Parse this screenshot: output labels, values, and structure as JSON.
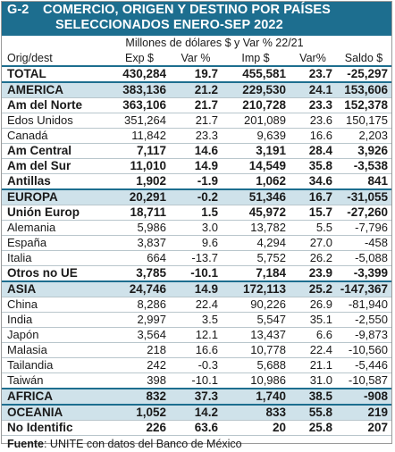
{
  "title": {
    "code": "G-2",
    "line1": "COMERCIO, ORIGEN Y DESTINO POR PAÍSES",
    "line2": "SELECCIONADOS ENERO-SEP 2022"
  },
  "subtitle": "Millones de dólares $ y Var % 22/21",
  "columns": [
    "Orig/dest",
    "Exp $",
    "Var %",
    "Imp $",
    "Var%",
    "Saldo $"
  ],
  "rows": [
    {
      "name": "TOTAL",
      "exp": "430,284",
      "var_exp": "19.7",
      "imp": "455,581",
      "var_imp": "23.7",
      "saldo": "-25,297",
      "bold": true
    },
    {
      "name": "AMERICA",
      "exp": "383,136",
      "var_exp": "21.2",
      "imp": "229,530",
      "var_imp": "24.1",
      "saldo": "153,606",
      "bold": true,
      "section": true
    },
    {
      "name": "Am del Norte",
      "exp": "363,106",
      "var_exp": "21.7",
      "imp": "210,728",
      "var_imp": "23.3",
      "saldo": "152,378",
      "bold": true
    },
    {
      "name": "Edos Unidos",
      "exp": "351,264",
      "var_exp": "21.7",
      "imp": "201,089",
      "var_imp": "23.6",
      "saldo": "150,175",
      "bold": false
    },
    {
      "name": "Canadá",
      "exp": "11,842",
      "var_exp": "23.3",
      "imp": "9,639",
      "var_imp": "16.6",
      "saldo": "2,203",
      "bold": false
    },
    {
      "name": "Am Central",
      "exp": "7,117",
      "var_exp": "14.6",
      "imp": "3,191",
      "var_imp": "28.4",
      "saldo": "3,926",
      "bold": true
    },
    {
      "name": "Am del Sur",
      "exp": "11,010",
      "var_exp": "14.9",
      "imp": "14,549",
      "var_imp": "35.8",
      "saldo": "-3,538",
      "bold": true
    },
    {
      "name": "Antillas",
      "exp": "1,902",
      "var_exp": "-1.9",
      "imp": "1,062",
      "var_imp": "34.6",
      "saldo": "841",
      "bold": true
    },
    {
      "name": "EUROPA",
      "exp": "20,291",
      "var_exp": "-0.2",
      "imp": "51,346",
      "var_imp": "16.7",
      "saldo": "-31,055",
      "bold": true,
      "section": true
    },
    {
      "name": "Unión Europ",
      "exp": "18,711",
      "var_exp": "1.5",
      "imp": "45,972",
      "var_imp": "15.7",
      "saldo": "-27,260",
      "bold": true
    },
    {
      "name": "Alemania",
      "exp": "5,986",
      "var_exp": "3.0",
      "imp": "13,782",
      "var_imp": "5.5",
      "saldo": "-7,796",
      "bold": false
    },
    {
      "name": "España",
      "exp": "3,837",
      "var_exp": "9.6",
      "imp": "4,294",
      "var_imp": "27.0",
      "saldo": "-458",
      "bold": false
    },
    {
      "name": "Italia",
      "exp": "664",
      "var_exp": "-13.7",
      "imp": "5,752",
      "var_imp": "26.2",
      "saldo": "-5,088",
      "bold": false
    },
    {
      "name": "Otros no UE",
      "exp": "3,785",
      "var_exp": "-10.1",
      "imp": "7,184",
      "var_imp": "23.9",
      "saldo": "-3,399",
      "bold": true
    },
    {
      "name": "ASIA",
      "exp": "24,746",
      "var_exp": "14.9",
      "imp": "172,113",
      "var_imp": "25.2",
      "saldo": "-147,367",
      "bold": true,
      "section": true
    },
    {
      "name": "China",
      "exp": "8,286",
      "var_exp": "22.4",
      "imp": "90,226",
      "var_imp": "26.9",
      "saldo": "-81,940",
      "bold": false
    },
    {
      "name": "India",
      "exp": "2,997",
      "var_exp": "3.5",
      "imp": "5,547",
      "var_imp": "35.1",
      "saldo": "-2,550",
      "bold": false
    },
    {
      "name": "Japón",
      "exp": "3,564",
      "var_exp": "12.1",
      "imp": "13,437",
      "var_imp": "6.6",
      "saldo": "-9,873",
      "bold": false
    },
    {
      "name": "Malasia",
      "exp": "218",
      "var_exp": "16.6",
      "imp": "10,778",
      "var_imp": "22.4",
      "saldo": "-10,560",
      "bold": false
    },
    {
      "name": "Tailandia",
      "exp": "242",
      "var_exp": "-0.3",
      "imp": "5,688",
      "var_imp": "21.1",
      "saldo": "-5,446",
      "bold": false
    },
    {
      "name": "Taiwán",
      "exp": "398",
      "var_exp": "-10.1",
      "imp": "10,986",
      "var_imp": "31.0",
      "saldo": "-10,587",
      "bold": false
    },
    {
      "name": "AFRICA",
      "exp": "832",
      "var_exp": "37.3",
      "imp": "1,740",
      "var_imp": "38.5",
      "saldo": "-908",
      "bold": true,
      "section": true
    },
    {
      "name": "OCEANIA",
      "exp": "1,052",
      "var_exp": "14.2",
      "imp": "833",
      "var_imp": "55.8",
      "saldo": "219",
      "bold": true,
      "section": true
    },
    {
      "name": "No Identific",
      "exp": "226",
      "var_exp": "63.6",
      "imp": "20",
      "var_imp": "25.8",
      "saldo": "207",
      "bold": true
    }
  ],
  "source": {
    "label": "Fuente",
    "text": ": UNITE con datos del Banco de México"
  },
  "colors": {
    "header_bg": "#1d6e8f",
    "section_bg": "#cfe2ea",
    "row_rule": "#b9c6cc"
  }
}
